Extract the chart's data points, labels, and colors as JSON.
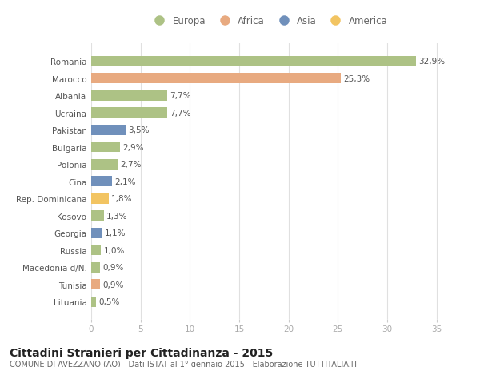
{
  "categories": [
    "Romania",
    "Marocco",
    "Albania",
    "Ucraina",
    "Pakistan",
    "Bulgaria",
    "Polonia",
    "Cina",
    "Rep. Dominicana",
    "Kosovo",
    "Georgia",
    "Russia",
    "Macedonia d/N.",
    "Tunisia",
    "Lituania"
  ],
  "values": [
    32.9,
    25.3,
    7.7,
    7.7,
    3.5,
    2.9,
    2.7,
    2.1,
    1.8,
    1.3,
    1.1,
    1.0,
    0.9,
    0.9,
    0.5
  ],
  "labels": [
    "32,9%",
    "25,3%",
    "7,7%",
    "7,7%",
    "3,5%",
    "2,9%",
    "2,7%",
    "2,1%",
    "1,8%",
    "1,3%",
    "1,1%",
    "1,0%",
    "0,9%",
    "0,9%",
    "0,5%"
  ],
  "continents": [
    "Europa",
    "Africa",
    "Europa",
    "Europa",
    "Asia",
    "Europa",
    "Europa",
    "Asia",
    "America",
    "Europa",
    "Asia",
    "Europa",
    "Europa",
    "Africa",
    "Europa"
  ],
  "continent_colors": {
    "Europa": "#adc285",
    "Africa": "#e8aa80",
    "Asia": "#7090bb",
    "America": "#f2c462"
  },
  "legend_order": [
    "Europa",
    "Africa",
    "Asia",
    "America"
  ],
  "bg_color": "#ffffff",
  "grid_color": "#e0e0e0",
  "title": "Cittadini Stranieri per Cittadinanza - 2015",
  "subtitle": "COMUNE DI AVEZZANO (AQ) - Dati ISTAT al 1° gennaio 2015 - Elaborazione TUTTITALIA.IT",
  "xlim": [
    0,
    36
  ],
  "xticks": [
    0,
    5,
    10,
    15,
    20,
    25,
    30,
    35
  ],
  "bar_height": 0.6,
  "label_fontsize": 7.5,
  "ytick_fontsize": 7.5,
  "xtick_fontsize": 7.5,
  "title_fontsize": 10,
  "subtitle_fontsize": 7,
  "legend_fontsize": 8.5
}
